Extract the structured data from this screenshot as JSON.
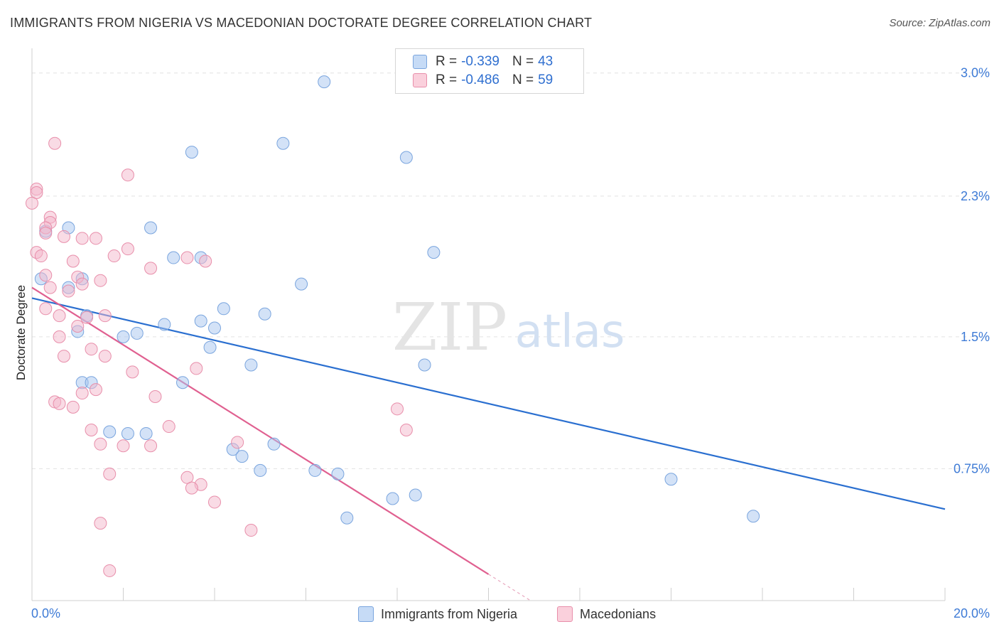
{
  "title": "IMMIGRANTS FROM NIGERIA VS MACEDONIAN DOCTORATE DEGREE CORRELATION CHART",
  "source": "Source: ZipAtlas.com",
  "watermark": {
    "zip": "ZIP",
    "atlas": "atlas"
  },
  "legend": {
    "rows": [
      {
        "r_label": "R =",
        "r_value": "-0.339",
        "n_label": "N =",
        "n_value": "43"
      },
      {
        "r_label": "R =",
        "r_value": "-0.486",
        "n_label": "N =",
        "n_value": "59"
      }
    ]
  },
  "chart_data": {
    "type": "scatter",
    "title": "IMMIGRANTS FROM NIGERIA VS MACEDONIAN DOCTORATE DEGREE CORRELATION CHART",
    "xlabel": "",
    "ylabel": "Doctorate Degree",
    "xlim": [
      0,
      20
    ],
    "ylim": [
      0,
      3.1
    ],
    "x_tick_labels": [
      "0.0%",
      "20.0%"
    ],
    "y_ticks": [
      0.75,
      1.5,
      2.3,
      3.0
    ],
    "y_tick_labels": [
      "0.75%",
      "1.5%",
      "2.3%",
      "3.0%"
    ],
    "grid": true,
    "legend_position": "bottom",
    "series": [
      {
        "name": "Immigrants from Nigeria",
        "color": "#a8c6ef",
        "stroke": "#7aa5de",
        "line_color": "#2a6fd0",
        "trend": {
          "x": [
            0,
            20
          ],
          "y": [
            1.72,
            0.52
          ]
        },
        "points": [
          [
            6.4,
            2.95
          ],
          [
            5.5,
            2.6
          ],
          [
            3.5,
            2.55
          ],
          [
            8.2,
            2.52
          ],
          [
            2.6,
            2.12
          ],
          [
            0.8,
            2.12
          ],
          [
            0.3,
            2.1
          ],
          [
            8.8,
            1.98
          ],
          [
            3.1,
            1.95
          ],
          [
            3.7,
            1.95
          ],
          [
            0.2,
            1.83
          ],
          [
            1.1,
            1.83
          ],
          [
            5.9,
            1.8
          ],
          [
            0.8,
            1.78
          ],
          [
            4.2,
            1.66
          ],
          [
            5.1,
            1.63
          ],
          [
            1.2,
            1.62
          ],
          [
            3.7,
            1.59
          ],
          [
            2.9,
            1.57
          ],
          [
            4.0,
            1.55
          ],
          [
            1.0,
            1.53
          ],
          [
            2.3,
            1.52
          ],
          [
            2.0,
            1.5
          ],
          [
            3.9,
            1.44
          ],
          [
            4.8,
            1.34
          ],
          [
            8.6,
            1.34
          ],
          [
            1.1,
            1.24
          ],
          [
            1.3,
            1.24
          ],
          [
            3.3,
            1.24
          ],
          [
            1.7,
            0.96
          ],
          [
            2.1,
            0.95
          ],
          [
            2.5,
            0.95
          ],
          [
            4.4,
            0.86
          ],
          [
            4.6,
            0.82
          ],
          [
            5.3,
            0.89
          ],
          [
            5.0,
            0.74
          ],
          [
            6.2,
            0.74
          ],
          [
            6.7,
            0.72
          ],
          [
            14.0,
            0.69
          ],
          [
            7.9,
            0.58
          ],
          [
            8.4,
            0.6
          ],
          [
            6.9,
            0.47
          ],
          [
            15.8,
            0.48
          ]
        ]
      },
      {
        "name": "Macedonians",
        "color": "#f4b8cb",
        "stroke": "#e88eaa",
        "line_color": "#e06090",
        "trend": {
          "x": [
            0,
            10
          ],
          "y": [
            1.78,
            0.15
          ]
        },
        "points": [
          [
            0.5,
            2.6
          ],
          [
            2.1,
            2.42
          ],
          [
            0.1,
            2.34
          ],
          [
            0.1,
            2.32
          ],
          [
            0.0,
            2.26
          ],
          [
            0.4,
            2.18
          ],
          [
            0.4,
            2.15
          ],
          [
            0.3,
            2.12
          ],
          [
            0.7,
            2.07
          ],
          [
            1.1,
            2.06
          ],
          [
            1.4,
            2.06
          ],
          [
            2.1,
            2.0
          ],
          [
            0.1,
            1.98
          ],
          [
            0.2,
            1.96
          ],
          [
            1.8,
            1.96
          ],
          [
            3.4,
            1.95
          ],
          [
            3.8,
            1.93
          ],
          [
            0.9,
            1.93
          ],
          [
            2.6,
            1.89
          ],
          [
            0.3,
            1.85
          ],
          [
            1.0,
            1.84
          ],
          [
            1.5,
            1.82
          ],
          [
            1.1,
            1.8
          ],
          [
            0.4,
            1.78
          ],
          [
            0.8,
            1.76
          ],
          [
            0.3,
            1.66
          ],
          [
            1.6,
            1.62
          ],
          [
            0.6,
            1.62
          ],
          [
            1.2,
            1.61
          ],
          [
            1.0,
            1.56
          ],
          [
            0.6,
            1.5
          ],
          [
            1.3,
            1.43
          ],
          [
            0.7,
            1.39
          ],
          [
            1.6,
            1.39
          ],
          [
            3.6,
            1.32
          ],
          [
            2.2,
            1.3
          ],
          [
            1.4,
            1.2
          ],
          [
            1.1,
            1.18
          ],
          [
            2.7,
            1.16
          ],
          [
            0.5,
            1.13
          ],
          [
            0.6,
            1.12
          ],
          [
            0.9,
            1.1
          ],
          [
            8.0,
            1.09
          ],
          [
            3.0,
            0.99
          ],
          [
            8.2,
            0.97
          ],
          [
            1.3,
            0.97
          ],
          [
            1.5,
            0.89
          ],
          [
            2.0,
            0.88
          ],
          [
            2.6,
            0.88
          ],
          [
            4.5,
            0.9
          ],
          [
            1.7,
            0.72
          ],
          [
            3.4,
            0.7
          ],
          [
            3.7,
            0.66
          ],
          [
            3.5,
            0.64
          ],
          [
            4.0,
            0.56
          ],
          [
            1.5,
            0.44
          ],
          [
            4.8,
            0.4
          ],
          [
            1.7,
            0.17
          ],
          [
            0.3,
            2.09
          ]
        ]
      }
    ]
  }
}
